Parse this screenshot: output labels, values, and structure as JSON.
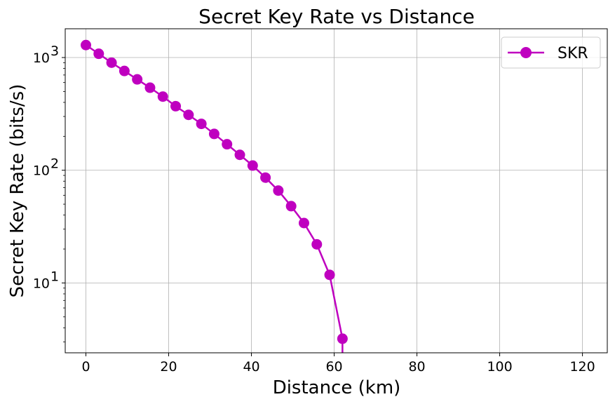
{
  "chart_data": {
    "type": "line",
    "title": "Secret Key Rate vs Distance",
    "xlabel": "Distance (km)",
    "ylabel": "Secret Key Rate (bits/s)",
    "yscale": "log",
    "xlim": [
      -5,
      126
    ],
    "ylim": [
      2.4,
      1800
    ],
    "grid": true,
    "legend_position": "top-right",
    "x_ticks": [
      {
        "value": 0,
        "label": "0"
      },
      {
        "value": 20,
        "label": "20"
      },
      {
        "value": 40,
        "label": "40"
      },
      {
        "value": 60,
        "label": "60"
      },
      {
        "value": 80,
        "label": "80"
      },
      {
        "value": 100,
        "label": "100"
      },
      {
        "value": 120,
        "label": "120"
      }
    ],
    "y_ticks": [
      {
        "value": 10,
        "base": "10",
        "exp": "1"
      },
      {
        "value": 100,
        "base": "10",
        "exp": "2"
      },
      {
        "value": 1000,
        "base": "10",
        "exp": "3"
      }
    ],
    "series": [
      {
        "name": "SKR",
        "color": "#bf00bf",
        "marker": "circle",
        "x": [
          0,
          3.1,
          6.2,
          9.3,
          12.4,
          15.5,
          18.6,
          21.7,
          24.8,
          27.9,
          31.0,
          34.1,
          37.2,
          40.3,
          43.4,
          46.5,
          49.6,
          52.7,
          55.8,
          58.9,
          62.0
        ],
        "y": [
          1290,
          1080,
          900,
          760,
          640,
          540,
          450,
          370,
          310,
          258,
          210,
          170,
          137,
          110,
          86,
          66,
          48,
          34,
          22,
          11.8,
          3.2
        ]
      }
    ]
  }
}
